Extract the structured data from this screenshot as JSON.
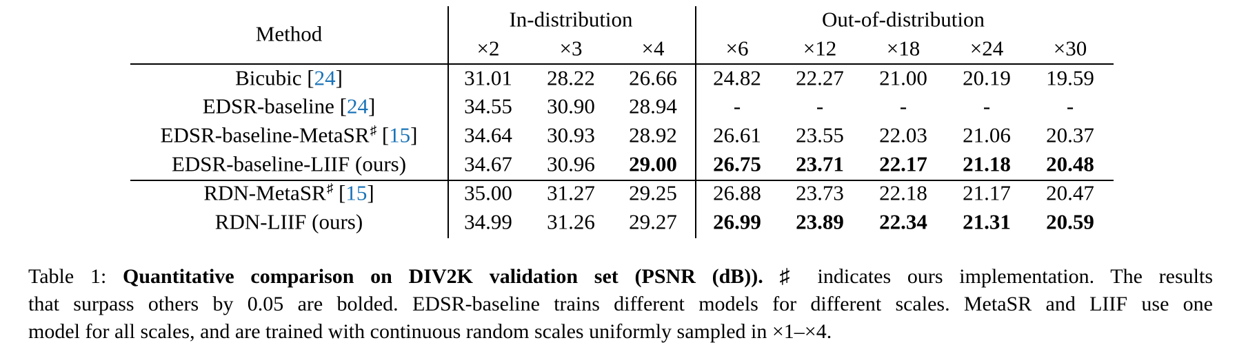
{
  "table": {
    "header": {
      "method_label": "Method",
      "groups": [
        {
          "label": "In-distribution",
          "scales": [
            "×2",
            "×3",
            "×4"
          ]
        },
        {
          "label": "Out-of-distribution",
          "scales": [
            "×6",
            "×12",
            "×18",
            "×24",
            "×30"
          ]
        }
      ]
    },
    "rows": [
      {
        "method": "Bicubic",
        "sup": "",
        "cite": "24",
        "values": [
          "31.01",
          "28.22",
          "26.66",
          "24.82",
          "22.27",
          "21.00",
          "20.19",
          "19.59"
        ],
        "bold": [
          false,
          false,
          false,
          false,
          false,
          false,
          false,
          false
        ]
      },
      {
        "method": "EDSR-baseline",
        "sup": "",
        "cite": "24",
        "values": [
          "34.55",
          "30.90",
          "28.94",
          "-",
          "-",
          "-",
          "-",
          "-"
        ],
        "bold": [
          false,
          false,
          false,
          false,
          false,
          false,
          false,
          false
        ]
      },
      {
        "method": "EDSR-baseline-MetaSR",
        "sup": "♯",
        "cite": "15",
        "values": [
          "34.64",
          "30.93",
          "28.92",
          "26.61",
          "23.55",
          "22.03",
          "21.06",
          "20.37"
        ],
        "bold": [
          false,
          false,
          false,
          false,
          false,
          false,
          false,
          false
        ]
      },
      {
        "method": "EDSR-baseline-LIIF (ours)",
        "sup": "",
        "cite": "",
        "values": [
          "34.67",
          "30.96",
          "29.00",
          "26.75",
          "23.71",
          "22.17",
          "21.18",
          "20.48"
        ],
        "bold": [
          false,
          false,
          true,
          true,
          true,
          true,
          true,
          true
        ]
      },
      {
        "method": "RDN-MetaSR",
        "sup": "♯",
        "cite": "15",
        "values": [
          "35.00",
          "31.27",
          "29.25",
          "26.88",
          "23.73",
          "22.18",
          "21.17",
          "20.47"
        ],
        "bold": [
          false,
          false,
          false,
          false,
          false,
          false,
          false,
          false
        ]
      },
      {
        "method": "RDN-LIIF (ours)",
        "sup": "",
        "cite": "",
        "values": [
          "34.99",
          "31.26",
          "29.27",
          "26.99",
          "23.89",
          "22.34",
          "21.31",
          "20.59"
        ],
        "bold": [
          false,
          false,
          false,
          true,
          true,
          true,
          true,
          true
        ]
      }
    ]
  },
  "caption": {
    "label": "Table 1:",
    "title": "Quantitative comparison on DIV2K validation set (PSNR (dB)).",
    "line1_rest": "♯ indicates ours implementation.  The results",
    "line2": "that surpass others by 0.05 are bolded. EDSR-baseline trains different models for different scales. MetaSR and LIIF use one",
    "line3": "model for all scales, and are trained with continuous random scales uniformly sampled in ×1–×4."
  },
  "colors": {
    "citation": "#1a73b8",
    "text": "#000000"
  }
}
